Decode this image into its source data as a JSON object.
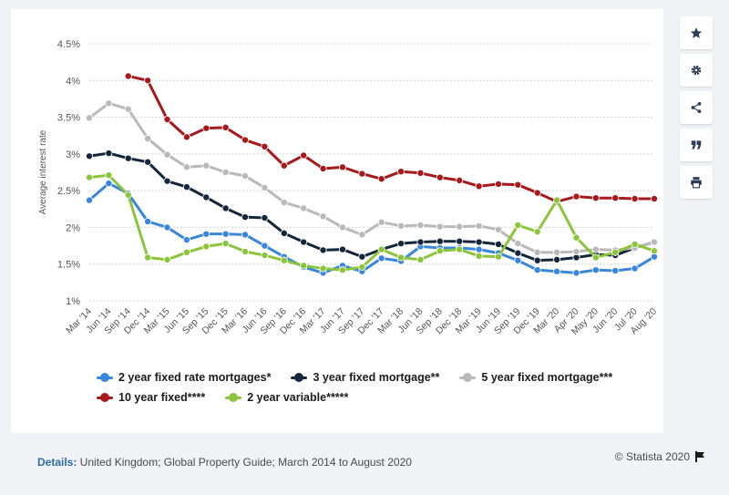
{
  "toolbar": {
    "icons": [
      "star-icon",
      "gear-icon",
      "share-icon",
      "quote-icon",
      "print-icon"
    ]
  },
  "footer": {
    "details_label": "Details:",
    "details_text": "United Kingdom; Global Property Guide; March 2014 to August 2020",
    "credit": "© Statista 2020"
  },
  "chart_data": {
    "type": "line",
    "ylabel": "Average interest rate",
    "xlabel": "",
    "ylim": [
      1,
      4.5
    ],
    "yticks": [
      "1%",
      "1.5%",
      "2%",
      "2.5%",
      "3%",
      "3.5%",
      "4%",
      "4.5%"
    ],
    "grid": true,
    "legend_position": "bottom",
    "x": [
      "Mar '14",
      "Jun '14",
      "Sep '14",
      "Dec '14",
      "Mar '15",
      "Jun '15",
      "Sep '15",
      "Dec '15",
      "Mar '16",
      "Jun '16",
      "Sep '16",
      "Dec '16",
      "Mar '17",
      "Jun '17",
      "Sep '17",
      "Dec '17",
      "Mar '18",
      "Jun '18",
      "Sep '18",
      "Dec '18",
      "Mar '19",
      "Jun '19",
      "Sep '19",
      "Dec '19",
      "Mar '20",
      "Apr '20",
      "May '20",
      "Jun '20",
      "Jul '20",
      "Aug '20"
    ],
    "series": [
      {
        "name": "2 year fixed rate mortgages*",
        "color": "#3a86dc",
        "values": [
          2.37,
          2.6,
          2.46,
          2.08,
          2.0,
          1.83,
          1.91,
          1.91,
          1.9,
          1.75,
          1.6,
          1.46,
          1.38,
          1.48,
          1.4,
          1.58,
          1.54,
          1.74,
          1.72,
          1.72,
          1.7,
          1.65,
          1.55,
          1.42,
          1.4,
          1.38,
          1.42,
          1.41,
          1.44,
          1.6
        ]
      },
      {
        "name": "3 year fixed mortgage**",
        "color": "#15263a",
        "values": [
          2.97,
          3.01,
          2.94,
          2.89,
          2.63,
          2.55,
          2.41,
          2.26,
          2.14,
          2.13,
          1.92,
          1.8,
          1.69,
          1.7,
          1.6,
          1.7,
          1.78,
          1.8,
          1.81,
          1.81,
          1.8,
          1.77,
          1.65,
          1.55,
          1.56,
          1.59,
          1.63,
          1.62,
          1.72,
          1.8
        ]
      },
      {
        "name": "5 year fixed mortgage***",
        "color": "#b9b9b9",
        "values": [
          3.49,
          3.69,
          3.61,
          3.21,
          2.99,
          2.82,
          2.84,
          2.75,
          2.7,
          2.54,
          2.34,
          2.26,
          2.15,
          2.0,
          1.9,
          2.07,
          2.02,
          2.03,
          2.01,
          2.01,
          2.02,
          1.97,
          1.78,
          1.66,
          1.66,
          1.67,
          1.7,
          1.69,
          1.72,
          1.8
        ]
      },
      {
        "name": "10 year fixed****",
        "color": "#a7191b",
        "values": [
          null,
          null,
          4.06,
          4.0,
          3.47,
          3.23,
          3.35,
          3.36,
          3.19,
          3.1,
          2.84,
          2.98,
          2.8,
          2.82,
          2.73,
          2.66,
          2.76,
          2.74,
          2.68,
          2.64,
          2.56,
          2.59,
          2.58,
          2.47,
          2.35,
          2.42,
          2.4,
          2.4,
          2.39,
          2.39
        ]
      },
      {
        "name": "2 year variable*****",
        "color": "#8cc43b",
        "values": [
          2.68,
          2.71,
          2.44,
          1.59,
          1.56,
          1.66,
          1.74,
          1.78,
          1.67,
          1.62,
          1.55,
          1.48,
          1.44,
          1.42,
          1.46,
          1.7,
          1.59,
          1.56,
          1.68,
          1.7,
          1.61,
          1.6,
          2.03,
          1.94,
          2.37,
          1.86,
          1.59,
          1.66,
          1.77,
          1.68
        ]
      }
    ]
  }
}
